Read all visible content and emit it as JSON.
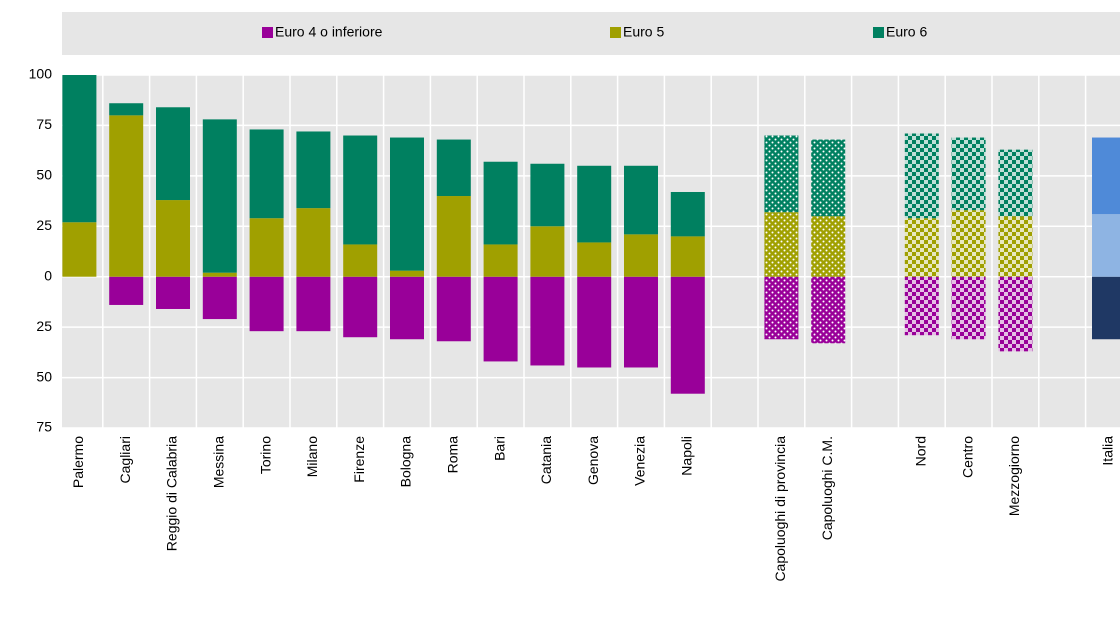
{
  "chart_data": {
    "type": "stacked-bar",
    "categories": [
      "Palermo",
      "Cagliari",
      "Reggio di Calabria",
      "Messina",
      "Torino",
      "Milano",
      "Firenze",
      "Bologna",
      "Roma",
      "Bari",
      "Catania",
      "Genova",
      "Venezia",
      "Napoli",
      null,
      "Capoluoghi di provincia",
      "Capoluoghi C.M.",
      null,
      "Nord",
      "Centro",
      "Mezzogiorno",
      null,
      "Italia"
    ],
    "series": [
      {
        "name": "Euro 4 o inferiore",
        "color": "#990099",
        "values": [
          0,
          -14,
          -16,
          -21,
          -27,
          -27,
          -30,
          -31,
          -32,
          -42,
          -44,
          -45,
          -45,
          -58,
          null,
          -31,
          -33,
          null,
          -29,
          -31,
          -37,
          null,
          -31
        ]
      },
      {
        "name": "Euro 5",
        "color": "#a0a000",
        "values": [
          27,
          80,
          38,
          2,
          29,
          34,
          16,
          3,
          40,
          16,
          25,
          17,
          21,
          20,
          null,
          32,
          30,
          null,
          29,
          33,
          30,
          null,
          31
        ]
      },
      {
        "name": "Euro 6",
        "color": "#008060",
        "values": [
          73,
          6,
          46,
          76,
          44,
          38,
          54,
          66,
          28,
          41,
          31,
          38,
          34,
          22,
          null,
          38,
          38,
          null,
          42,
          36,
          33,
          null,
          38
        ]
      }
    ],
    "patterns": [
      null,
      null,
      null,
      null,
      null,
      null,
      null,
      null,
      null,
      null,
      null,
      null,
      null,
      null,
      null,
      "dots",
      "dots",
      null,
      "checks",
      "checks",
      "checks",
      null,
      "highlight"
    ],
    "highlight_colors": [
      "#1f3864",
      "#8eb4e3",
      "#4f8ad8"
    ],
    "ylim": [
      -75,
      100
    ],
    "yticks": [
      {
        "value": -75,
        "label": "75"
      },
      {
        "value": -50,
        "label": "50"
      },
      {
        "value": -25,
        "label": "25"
      },
      0,
      25,
      50,
      75,
      100
    ],
    "grid": true
  }
}
